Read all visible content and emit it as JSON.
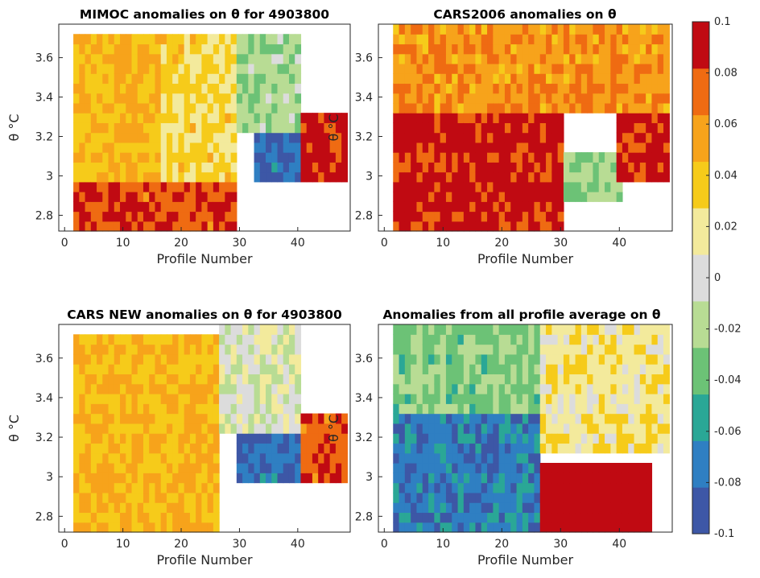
{
  "chart_data": [
    {
      "type": "heatmap",
      "title": "MIMOC anomalies on θ  for 4903800",
      "xlabel": "Profile Number",
      "ylabel": "θ °C",
      "xlim": [
        -1,
        49
      ],
      "ylim": [
        2.72,
        3.77
      ],
      "xticks": [
        "0",
        "10",
        "20",
        "30",
        "40"
      ],
      "yticks": [
        "2.8",
        "3",
        "3.2",
        "3.4",
        "3.6"
      ],
      "profiles": [
        2,
        48
      ],
      "theta_range": [
        2.72,
        3.72
      ],
      "zones": [
        {
          "profiles": [
            2,
            16
          ],
          "theta": [
            2.72,
            3.72
          ],
          "anomaly": 0.045
        },
        {
          "profiles": [
            17,
            29
          ],
          "theta": [
            2.72,
            3.72
          ],
          "anomaly": 0.03
        },
        {
          "profiles": [
            30,
            40
          ],
          "theta": [
            3.2,
            3.72
          ],
          "anomaly": -0.02
        },
        {
          "profiles": [
            33,
            40
          ],
          "theta": [
            2.98,
            3.2
          ],
          "anomaly": -0.08
        },
        {
          "profiles": [
            41,
            48
          ],
          "theta": [
            2.98,
            3.3
          ],
          "anomaly": 0.09
        },
        {
          "profiles": [
            2,
            29
          ],
          "theta": [
            2.72,
            2.95
          ],
          "anomaly": 0.08
        }
      ]
    },
    {
      "type": "heatmap",
      "title": "CARS2006 anomalies on θ",
      "xlabel": "Profile Number",
      "ylabel": "θ °C",
      "xlim": [
        -1,
        49
      ],
      "ylim": [
        2.72,
        3.77
      ],
      "xticks": [
        "0",
        "10",
        "20",
        "30",
        "40"
      ],
      "yticks": [
        "2.8",
        "3",
        "3.2",
        "3.4",
        "3.6"
      ],
      "profiles": [
        2,
        48
      ],
      "theta_range": [
        2.72,
        3.75
      ],
      "zones": [
        {
          "profiles": [
            2,
            48
          ],
          "theta": [
            3.3,
            3.75
          ],
          "anomaly": 0.06
        },
        {
          "profiles": [
            2,
            30
          ],
          "theta": [
            2.72,
            3.3
          ],
          "anomaly": 0.09
        },
        {
          "profiles": [
            31,
            40
          ],
          "theta": [
            2.85,
            3.1
          ],
          "anomaly": -0.03
        },
        {
          "profiles": [
            40,
            48
          ],
          "theta": [
            2.98,
            3.3
          ],
          "anomaly": 0.09
        }
      ]
    },
    {
      "type": "heatmap",
      "title": "CARS NEW anomalies on θ for 4903800",
      "xlabel": "Profile Number",
      "ylabel": "θ °C",
      "xlim": [
        -1,
        49
      ],
      "ylim": [
        2.72,
        3.77
      ],
      "xticks": [
        "0",
        "10",
        "20",
        "30",
        "40"
      ],
      "yticks": [
        "2.8",
        "3",
        "3.2",
        "3.4",
        "3.6"
      ],
      "profiles": [
        2,
        48
      ],
      "theta_range": [
        2.72,
        3.75
      ],
      "zones": [
        {
          "profiles": [
            2,
            26
          ],
          "theta": [
            2.72,
            3.72
          ],
          "anomaly": 0.045
        },
        {
          "profiles": [
            27,
            40
          ],
          "theta": [
            3.2,
            3.75
          ],
          "anomaly": 0.0
        },
        {
          "profiles": [
            30,
            40
          ],
          "theta": [
            2.98,
            3.2
          ],
          "anomaly": -0.08
        },
        {
          "profiles": [
            41,
            48
          ],
          "theta": [
            2.98,
            3.3
          ],
          "anomaly": 0.08
        }
      ]
    },
    {
      "type": "heatmap",
      "title": "Anomalies from all profile average on θ",
      "xlabel": "Profile Number",
      "ylabel": "θ °C",
      "xlim": [
        -1,
        49
      ],
      "ylim": [
        2.72,
        3.77
      ],
      "xticks": [
        "0",
        "10",
        "20",
        "30",
        "40"
      ],
      "yticks": [
        "2.8",
        "3",
        "3.2",
        "3.4",
        "3.6"
      ],
      "profiles": [
        2,
        48
      ],
      "theta_range": [
        2.72,
        3.77
      ],
      "zones": [
        {
          "profiles": [
            2,
            26
          ],
          "theta": [
            3.3,
            3.77
          ],
          "anomaly": -0.03
        },
        {
          "profiles": [
            2,
            26
          ],
          "theta": [
            2.72,
            3.3
          ],
          "anomaly": -0.075
        },
        {
          "profiles": [
            27,
            48
          ],
          "theta": [
            3.1,
            3.77
          ],
          "anomaly": 0.02
        },
        {
          "profiles": [
            27,
            45
          ],
          "theta": [
            2.72,
            3.05
          ],
          "anomaly": 0.1
        }
      ]
    }
  ],
  "colorbar": {
    "min": -0.1,
    "max": 0.1,
    "ticks": [
      "0.1",
      "0.08",
      "0.06",
      "0.04",
      "0.02",
      "0",
      "-0.02",
      "-0.04",
      "-0.06",
      "-0.08",
      "-0.1"
    ],
    "colors": [
      "#3d57a6",
      "#2f7fc2",
      "#2aa796",
      "#6cc276",
      "#b8dc94",
      "#dcdcdc",
      "#f3ea9c",
      "#f6cb1a",
      "#f7a31b",
      "#ef6b12",
      "#c00a12"
    ]
  }
}
